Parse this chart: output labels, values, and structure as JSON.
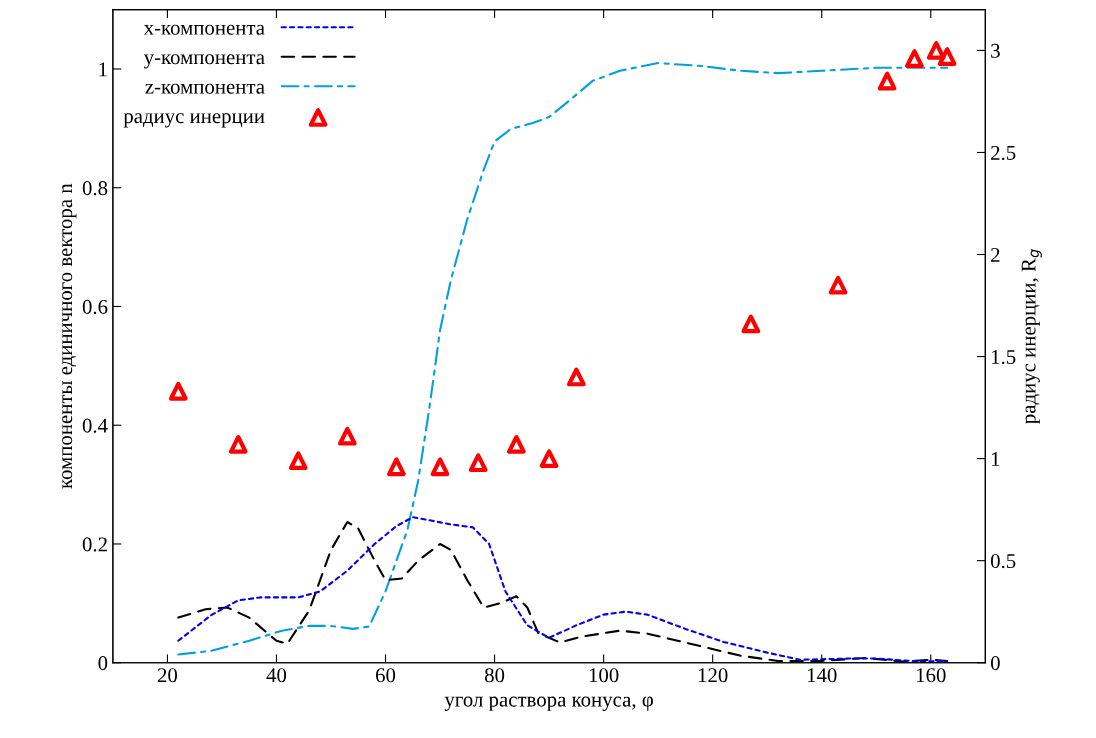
{
  "chart_data": {
    "type": "line",
    "xlabel": "угол раствора конуса, φ",
    "ylabel": "компоненты единичного вектора n",
    "y2label": "радиус инерции, R$_{g}$",
    "xlim": [
      10,
      170
    ],
    "xticks": [
      20,
      40,
      60,
      80,
      100,
      120,
      140,
      160
    ],
    "ylim": [
      0,
      1.1
    ],
    "yticks": [
      0,
      0.2,
      0.4,
      0.6,
      0.8,
      1
    ],
    "y2lim": [
      0,
      3.2
    ],
    "y2ticks": [
      0,
      0.5,
      1,
      1.5,
      2,
      2.5,
      3
    ],
    "grid": false,
    "legend": "top left",
    "marker": "none",
    "series": [
      {
        "name": "x-компонента",
        "color": "#0000ee",
        "line_style": "dotted",
        "x": [
          22,
          28,
          33,
          37,
          44,
          48,
          53,
          58,
          62,
          65,
          68,
          72,
          76,
          79,
          82,
          86,
          90,
          95,
          100,
          104,
          108,
          115,
          122,
          130,
          136,
          145,
          150,
          158,
          163
        ],
        "values": [
          0.037,
          0.08,
          0.105,
          0.11,
          0.11,
          0.12,
          0.155,
          0.2,
          0.23,
          0.245,
          0.24,
          0.233,
          0.228,
          0.2,
          0.12,
          0.063,
          0.042,
          0.063,
          0.081,
          0.086,
          0.081,
          0.057,
          0.035,
          0.017,
          0.005,
          0.007,
          0.007,
          0.002,
          0.003
        ]
      },
      {
        "name": "y-компонента",
        "color": "#000000",
        "line_style": "dashed",
        "x": [
          22,
          27,
          31,
          35,
          40,
          42,
          46,
          50,
          53,
          55,
          58,
          60,
          63,
          66,
          70,
          72,
          75,
          78,
          81,
          84,
          86,
          88,
          92,
          96,
          103,
          108,
          115,
          125,
          132,
          140,
          148,
          155,
          160,
          163
        ],
        "values": [
          0.076,
          0.09,
          0.093,
          0.076,
          0.037,
          0.032,
          0.088,
          0.19,
          0.237,
          0.226,
          0.172,
          0.139,
          0.142,
          0.172,
          0.2,
          0.19,
          0.139,
          0.093,
          0.1,
          0.112,
          0.093,
          0.05,
          0.034,
          0.044,
          0.054,
          0.049,
          0.034,
          0.012,
          0.003,
          0.003,
          0.008,
          0.002,
          0.005,
          0.003
        ]
      },
      {
        "name": "z-компонента",
        "color": "#00a0e0",
        "line_style": "dashdot",
        "x": [
          22,
          28,
          35,
          41,
          46,
          50,
          54,
          57,
          60,
          62,
          64,
          66,
          68,
          70,
          72,
          75,
          78,
          80,
          83,
          87,
          90,
          94,
          98,
          103,
          110,
          118,
          125,
          132,
          140,
          150,
          163
        ],
        "values": [
          0.014,
          0.02,
          0.037,
          0.054,
          0.062,
          0.062,
          0.057,
          0.061,
          0.12,
          0.172,
          0.223,
          0.307,
          0.426,
          0.56,
          0.645,
          0.747,
          0.83,
          0.878,
          0.899,
          0.909,
          0.919,
          0.949,
          0.98,
          0.997,
          1.01,
          1.005,
          0.997,
          0.993,
          0.997,
          1.002,
          1.002
        ]
      },
      {
        "name": "радиус инерции",
        "type": "scatter",
        "axis": "y2",
        "marker": "triangle",
        "color": "#ff0000",
        "x": [
          22,
          33,
          44,
          53,
          62,
          70,
          77,
          84,
          90,
          95,
          127,
          143,
          152,
          157,
          161,
          163
        ],
        "values": [
          1.33,
          1.07,
          0.99,
          1.11,
          0.96,
          0.96,
          0.98,
          1.07,
          1.0,
          1.4,
          1.66,
          1.85,
          2.85,
          2.96,
          3.0,
          2.97
        ]
      }
    ]
  }
}
